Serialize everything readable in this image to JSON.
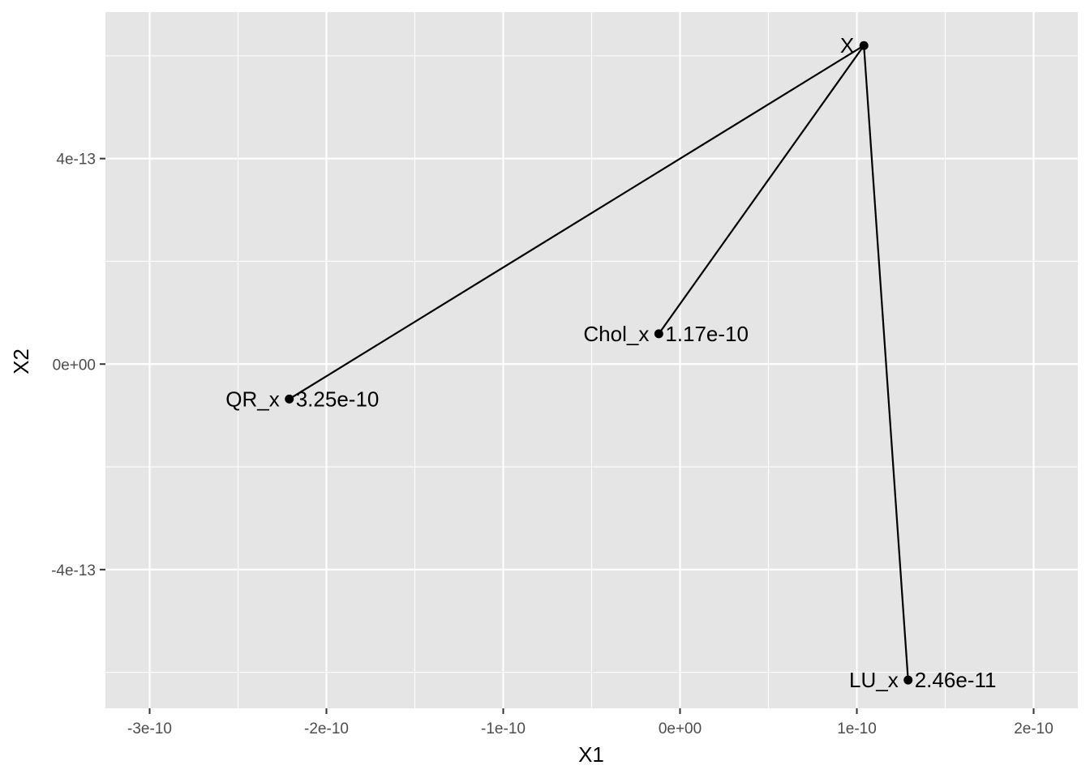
{
  "chart_data": {
    "type": "scatter",
    "title": "",
    "xlabel": "X1",
    "ylabel": "X2",
    "xlim": [
      -3.25e-10,
      2.25e-10
    ],
    "ylim": [
      -6.7e-13,
      6.85e-13
    ],
    "x_ticks": [
      {
        "value": -3e-10,
        "label": "-3e-10"
      },
      {
        "value": -2e-10,
        "label": "-2e-10"
      },
      {
        "value": -1e-10,
        "label": "-1e-10"
      },
      {
        "value": 0,
        "label": "0e+00"
      },
      {
        "value": 1e-10,
        "label": "1e-10"
      },
      {
        "value": 2e-10,
        "label": "2e-10"
      }
    ],
    "y_ticks": [
      {
        "value": -4e-13,
        "label": "-4e-13"
      },
      {
        "value": 0,
        "label": "0e+00"
      },
      {
        "value": 4e-13,
        "label": "4e-13"
      }
    ],
    "grid": true,
    "background": "#e5e5e5",
    "grid_color": "#ffffff",
    "mark_color": "#000000",
    "points": [
      {
        "name": "X",
        "x": 1.04e-10,
        "y": 6.2e-13,
        "label": "X"
      },
      {
        "name": "QR_x",
        "x": -2.21e-10,
        "y": -6.8e-14,
        "label": "QR_x",
        "value_label": "3.25e-10"
      },
      {
        "name": "Chol_x",
        "x": -1.2e-11,
        "y": 5.9e-14,
        "label": "Chol_x",
        "value_label": "1.17e-10"
      },
      {
        "name": "LU_x",
        "x": 1.29e-10,
        "y": -6.15e-13,
        "label": "LU_x",
        "value_label": "2.46e-11"
      }
    ],
    "segments": [
      {
        "from": "X",
        "to": "QR_x"
      },
      {
        "from": "X",
        "to": "Chol_x"
      },
      {
        "from": "X",
        "to": "LU_x"
      }
    ]
  }
}
